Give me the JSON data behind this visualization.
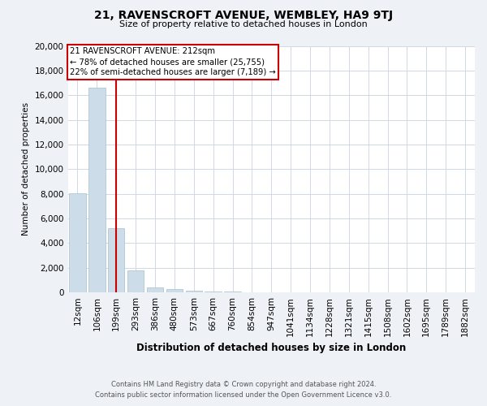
{
  "title": "21, RAVENSCROFT AVENUE, WEMBLEY, HA9 9TJ",
  "subtitle": "Size of property relative to detached houses in London",
  "xlabel": "Distribution of detached houses by size in London",
  "ylabel": "Number of detached properties",
  "bar_values": [
    8050,
    16600,
    5200,
    1800,
    400,
    250,
    150,
    90,
    60,
    30,
    10,
    5,
    2,
    1,
    0,
    0,
    0,
    0,
    0,
    0,
    0
  ],
  "bar_labels": [
    "12sqm",
    "106sqm",
    "199sqm",
    "293sqm",
    "386sqm",
    "480sqm",
    "573sqm",
    "667sqm",
    "760sqm",
    "854sqm",
    "947sqm",
    "1041sqm",
    "1134sqm",
    "1228sqm",
    "1321sqm",
    "1415sqm",
    "1508sqm",
    "1602sqm",
    "1695sqm",
    "1789sqm",
    "1882sqm"
  ],
  "bar_color": "#ccdce8",
  "bar_edge_color": "#aabfcf",
  "property_bin_index": 2,
  "annotation_line1": "21 RAVENSCROFT AVENUE: 212sqm",
  "annotation_line2": "← 78% of detached houses are smaller (25,755)",
  "annotation_line3": "22% of semi-detached houses are larger (7,189) →",
  "annotation_box_color": "#cc0000",
  "vline_color": "#cc0000",
  "ylim": [
    0,
    20000
  ],
  "yticks": [
    0,
    2000,
    4000,
    6000,
    8000,
    10000,
    12000,
    14000,
    16000,
    18000,
    20000
  ],
  "footer_line1": "Contains HM Land Registry data © Crown copyright and database right 2024.",
  "footer_line2": "Contains public sector information licensed under the Open Government Licence v3.0.",
  "bg_color": "#eef2f6",
  "plot_bg_color": "#ffffff",
  "grid_color": "#d0d8e4"
}
